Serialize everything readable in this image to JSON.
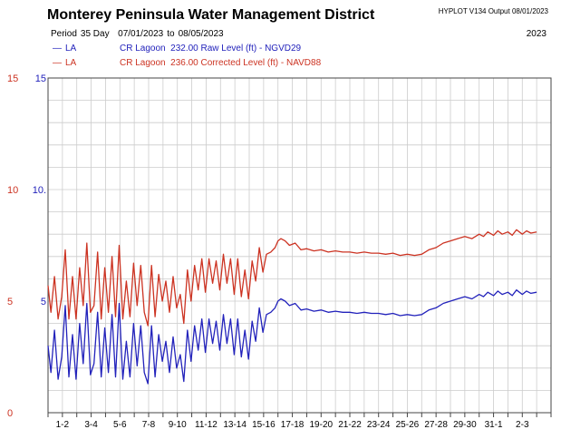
{
  "header": {
    "title": "Monterey Peninsula Water Management District",
    "program": "HYPLOT V134  Output 08/01/2023",
    "period_label": "Period",
    "period_length": "35 Day",
    "start_date": "07/01/2023",
    "to_label": "to",
    "end_date": "08/05/2023",
    "year": "2023"
  },
  "colors": {
    "blue": "#2222bb",
    "red": "#cc3322",
    "grid": "#cccccc",
    "frame": "#444444"
  },
  "chart_data": {
    "type": "line",
    "grid": true,
    "ylim": [
      0,
      15
    ],
    "xlim": [
      0,
      35
    ],
    "left_ticks": [
      "0",
      "5",
      "10",
      "15"
    ],
    "right_ticks": [
      "5",
      "10.",
      "15"
    ],
    "right_tick_values": [
      5,
      10,
      15
    ],
    "x_tick_labels": [
      "1-2",
      "3-4",
      "5-6",
      "7-8",
      "9-10",
      "11-12",
      "13-14",
      "15-16",
      "17-18",
      "19-20",
      "21-22",
      "23-24",
      "25-26",
      "27-28",
      "29-30",
      "31-1",
      "2-3"
    ],
    "series": [
      {
        "name": "CR Lagoon  232.00 Raw Level (ft) - NGVD29",
        "code": "LA",
        "color": "#2222bb",
        "x": [
          0,
          0.2,
          0.45,
          0.7,
          0.95,
          1.2,
          1.45,
          1.7,
          1.95,
          2.2,
          2.45,
          2.7,
          2.95,
          3.2,
          3.45,
          3.7,
          3.95,
          4.2,
          4.45,
          4.7,
          4.95,
          5.2,
          5.45,
          5.7,
          5.95,
          6.2,
          6.45,
          6.7,
          6.95,
          7.2,
          7.45,
          7.7,
          7.95,
          8.2,
          8.45,
          8.7,
          8.95,
          9.2,
          9.45,
          9.7,
          9.95,
          10.2,
          10.45,
          10.7,
          10.95,
          11.2,
          11.45,
          11.7,
          11.95,
          12.2,
          12.45,
          12.7,
          12.95,
          13.2,
          13.45,
          13.7,
          13.95,
          14.2,
          14.45,
          14.7,
          14.95,
          15.2,
          15.5,
          15.8,
          16.0,
          16.2,
          16.5,
          16.8,
          17.2,
          17.6,
          18.0,
          18.5,
          19.0,
          19.5,
          20.0,
          20.5,
          21.0,
          21.5,
          22.0,
          22.5,
          23.0,
          23.5,
          24.0,
          24.5,
          25.0,
          25.5,
          26.0,
          26.5,
          27.0,
          27.5,
          28.0,
          28.5,
          29.0,
          29.5,
          30.0,
          30.3,
          30.6,
          31.0,
          31.3,
          31.6,
          32.0,
          32.3,
          32.6,
          33.0,
          33.3,
          33.6,
          34.0
        ],
        "values": [
          3.0,
          1.8,
          3.7,
          1.5,
          2.5,
          4.8,
          1.6,
          3.5,
          1.5,
          4.0,
          2.2,
          4.9,
          1.7,
          2.2,
          4.5,
          1.6,
          3.8,
          1.8,
          4.4,
          1.6,
          4.9,
          1.5,
          3.2,
          1.6,
          4.0,
          2.1,
          3.9,
          1.8,
          1.3,
          3.9,
          1.6,
          3.5,
          2.3,
          3.2,
          1.8,
          3.4,
          2.0,
          2.6,
          1.4,
          3.7,
          2.3,
          3.9,
          2.8,
          4.2,
          2.7,
          4.2,
          3.1,
          4.1,
          2.8,
          4.4,
          3.1,
          4.2,
          2.6,
          4.2,
          2.5,
          3.7,
          2.4,
          4.1,
          3.2,
          4.7,
          3.6,
          4.4,
          4.5,
          4.7,
          5.0,
          5.1,
          5.0,
          4.8,
          4.9,
          4.6,
          4.65,
          4.55,
          4.6,
          4.5,
          4.55,
          4.5,
          4.5,
          4.45,
          4.5,
          4.45,
          4.45,
          4.4,
          4.45,
          4.35,
          4.4,
          4.35,
          4.4,
          4.6,
          4.7,
          4.9,
          5.0,
          5.1,
          5.2,
          5.1,
          5.3,
          5.2,
          5.4,
          5.25,
          5.45,
          5.3,
          5.4,
          5.25,
          5.5,
          5.3,
          5.45,
          5.35,
          5.4
        ]
      },
      {
        "name": "CR Lagoon  236.00 Corrected Level (ft) - NAVD88",
        "code": "LA",
        "color": "#cc3322",
        "x": [
          0,
          0.2,
          0.45,
          0.7,
          0.95,
          1.2,
          1.45,
          1.7,
          1.95,
          2.2,
          2.45,
          2.7,
          2.95,
          3.2,
          3.45,
          3.7,
          3.95,
          4.2,
          4.45,
          4.7,
          4.95,
          5.2,
          5.45,
          5.7,
          5.95,
          6.2,
          6.45,
          6.7,
          6.95,
          7.2,
          7.45,
          7.7,
          7.95,
          8.2,
          8.45,
          8.7,
          8.95,
          9.2,
          9.45,
          9.7,
          9.95,
          10.2,
          10.45,
          10.7,
          10.95,
          11.2,
          11.45,
          11.7,
          11.95,
          12.2,
          12.45,
          12.7,
          12.95,
          13.2,
          13.45,
          13.7,
          13.95,
          14.2,
          14.45,
          14.7,
          14.95,
          15.2,
          15.5,
          15.8,
          16.0,
          16.2,
          16.5,
          16.8,
          17.2,
          17.6,
          18.0,
          18.5,
          19.0,
          19.5,
          20.0,
          20.5,
          21.0,
          21.5,
          22.0,
          22.5,
          23.0,
          23.5,
          24.0,
          24.5,
          25.0,
          25.5,
          26.0,
          26.5,
          27.0,
          27.5,
          28.0,
          28.5,
          29.0,
          29.5,
          30.0,
          30.3,
          30.6,
          31.0,
          31.3,
          31.6,
          32.0,
          32.3,
          32.6,
          33.0,
          33.3,
          33.6,
          34.0
        ],
        "values": [
          5.7,
          4.5,
          6.1,
          4.2,
          5.2,
          7.3,
          4.2,
          6.1,
          4.2,
          6.5,
          4.8,
          7.6,
          4.5,
          4.8,
          7.2,
          4.2,
          6.5,
          4.5,
          7.0,
          4.3,
          7.5,
          4.2,
          5.9,
          4.3,
          6.7,
          4.8,
          6.6,
          4.5,
          3.9,
          6.6,
          4.3,
          6.2,
          5.0,
          5.9,
          4.5,
          6.1,
          4.7,
          5.3,
          4.0,
          6.4,
          5.0,
          6.6,
          5.5,
          6.9,
          5.4,
          6.9,
          5.8,
          6.8,
          5.5,
          7.1,
          5.8,
          6.9,
          5.3,
          6.9,
          5.2,
          6.4,
          5.1,
          6.8,
          5.9,
          7.4,
          6.3,
          7.1,
          7.2,
          7.4,
          7.7,
          7.8,
          7.7,
          7.5,
          7.6,
          7.3,
          7.35,
          7.25,
          7.3,
          7.2,
          7.25,
          7.2,
          7.2,
          7.15,
          7.2,
          7.15,
          7.15,
          7.1,
          7.15,
          7.05,
          7.1,
          7.05,
          7.1,
          7.3,
          7.4,
          7.6,
          7.7,
          7.8,
          7.9,
          7.8,
          8.0,
          7.9,
          8.1,
          7.95,
          8.15,
          8.0,
          8.1,
          7.95,
          8.2,
          8.0,
          8.15,
          8.05,
          8.1
        ]
      }
    ]
  }
}
